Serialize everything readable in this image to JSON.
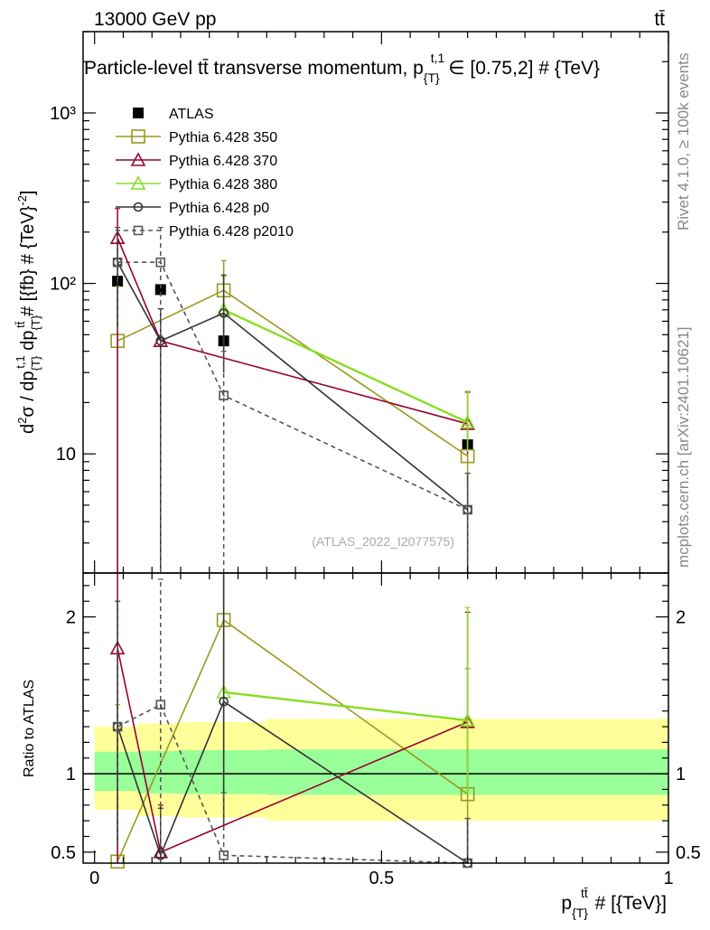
{
  "header": {
    "collision": "13000 GeV pp",
    "process": "tt̄"
  },
  "side_labels": {
    "rivet": "Rivet 4.1.0, ≥ 100k events",
    "source": "mcplots.cern.ch [arXiv:2401.10621]"
  },
  "chart_data": [
    {
      "type": "scatter",
      "panel": "main",
      "title": "Particle-level tt̄ transverse momentum, p_{T}^{t,1} ∈ [0.75,2] # {TeV}",
      "title_parts": {
        "main": "Particle-level tt̄ transverse momentum, p",
        "sub": "{T}",
        "sup": "t,1",
        "tail": "∈ [0.75,2] # {TeV}"
      },
      "ylabel": "d²σ / dp_{T}^{t,1} dp_{T}^{tt̄} # [{fb} # {TeV}^{-2}]",
      "ylabel_parts": {
        "a": "d",
        "a_sup": "2",
        "b": "σ / dp",
        "b_sub": "{T}",
        "b_sup": "t,1",
        "c": " dp",
        "c_sub": "{T}",
        "c_sup": "tt̄",
        "d": " # [{fb} # {TeV}",
        "d_sup": "-2",
        "e": "]"
      },
      "yscale": "log",
      "ylim": [
        2.0,
        3000
      ],
      "xlim": [
        -0.02,
        1.0
      ],
      "yticks": [
        {
          "value": 10,
          "label": "10"
        },
        {
          "value": 100,
          "label": "10²"
        },
        {
          "value": 1000,
          "label": "10³"
        }
      ],
      "watermark": "(ATLAS_2022_I2077575)",
      "legend_position": "top-left",
      "series": [
        {
          "name": "ATLAS",
          "color": "#000000",
          "marker": "filled-square",
          "line": "none",
          "x": [
            0.04,
            0.115,
            0.225,
            0.65
          ],
          "y": [
            103,
            92,
            46,
            11.3
          ],
          "err_lo": [
            0,
            0,
            0,
            0
          ],
          "err_hi": [
            0,
            0,
            0,
            0
          ]
        },
        {
          "name": "Pythia 6.428 350",
          "color": "#999920",
          "marker": "open-square",
          "line": "solid",
          "x": [
            0.04,
            0.225,
            0.65
          ],
          "y": [
            46,
            91,
            9.7
          ],
          "err_lo": [
            46,
            50,
            3
          ],
          "err_hi": [
            50,
            45,
            5
          ]
        },
        {
          "name": "Pythia 6.428 370",
          "color": "#990033",
          "marker": "open-triangle",
          "line": "solid",
          "x": [
            0.04,
            0.115,
            0.65
          ],
          "y": [
            185,
            46,
            15
          ],
          "err_lo": [
            185,
            46,
            5
          ],
          "err_hi": [
            90,
            25,
            8
          ]
        },
        {
          "name": "Pythia 6.428 380",
          "color": "#88dd22",
          "marker": "open-triangle",
          "line": "solid",
          "x": [
            0.225,
            0.65
          ],
          "y": [
            70,
            15.3
          ],
          "err_lo": [
            30,
            5
          ],
          "err_hi": [
            40,
            8
          ]
        },
        {
          "name": "Pythia 6.428 p0",
          "color": "#333333",
          "marker": "open-circle",
          "line": "solid",
          "x": [
            0.04,
            0.115,
            0.225,
            0.65
          ],
          "y": [
            133,
            46,
            67,
            4.7
          ],
          "err_lo": [
            78,
            46,
            37,
            4.7
          ],
          "err_hi": [
            80,
            25,
            45,
            3
          ]
        },
        {
          "name": "Pythia 6.428 p2010",
          "color": "#555555",
          "marker": "open-square-small",
          "line": "dashed",
          "x": [
            0.04,
            0.115,
            0.225,
            0.65
          ],
          "y": [
            133,
            133,
            22,
            4.7
          ],
          "err_lo": [
            80,
            133,
            22,
            4.7
          ],
          "err_hi": [
            80,
            80,
            18,
            3
          ]
        }
      ]
    },
    {
      "type": "scatter",
      "panel": "ratio",
      "ylabel": "Ratio to ATLAS",
      "xlabel": "p_{T}^{tt̄} # [{TeV}]",
      "xlabel_parts": {
        "a": "p",
        "sub": "{T}",
        "sup": "tt̄",
        "b": " # [{TeV}]"
      },
      "ylim": [
        0.43,
        2.28
      ],
      "xlim": [
        -0.02,
        1.0
      ],
      "yticks": [
        {
          "value": 0.5,
          "label": "0.5"
        },
        {
          "value": 1,
          "label": "1"
        },
        {
          "value": 2,
          "label": "2"
        }
      ],
      "xticks": [
        {
          "value": 0,
          "label": "0"
        },
        {
          "value": 0.5,
          "label": "0.5"
        },
        {
          "value": 1,
          "label": "1"
        }
      ],
      "bands": [
        {
          "name": "total-uncertainty",
          "color": "#ffff99",
          "segments": [
            {
              "x0": 0.0,
              "x1": 0.075,
              "lo": 0.77,
              "hi": 1.3
            },
            {
              "x0": 0.075,
              "x1": 0.15,
              "lo": 0.73,
              "hi": 1.32
            },
            {
              "x0": 0.15,
              "x1": 0.3,
              "lo": 0.72,
              "hi": 1.33
            },
            {
              "x0": 0.3,
              "x1": 1.0,
              "lo": 0.7,
              "hi": 1.35
            }
          ]
        },
        {
          "name": "stat-uncertainty",
          "color": "#99ff99",
          "segments": [
            {
              "x0": 0.0,
              "x1": 0.075,
              "lo": 0.89,
              "hi": 1.14
            },
            {
              "x0": 0.075,
              "x1": 0.15,
              "lo": 0.875,
              "hi": 1.145
            },
            {
              "x0": 0.15,
              "x1": 0.3,
              "lo": 0.87,
              "hi": 1.15
            },
            {
              "x0": 0.3,
              "x1": 1.0,
              "lo": 0.865,
              "hi": 1.155
            }
          ]
        }
      ],
      "series": [
        {
          "name": "Pythia 6.428 350",
          "color": "#999920",
          "marker": "open-square",
          "line": "solid",
          "x": [
            0.04,
            0.225,
            0.65
          ],
          "y": [
            0.44,
            1.98,
            0.87
          ],
          "err_lo": [
            0.44,
            1.0,
            0.45
          ],
          "err_hi": [
            1.0,
            0.5,
            0.8
          ]
        },
        {
          "name": "Pythia 6.428 370",
          "color": "#990033",
          "marker": "open-triangle",
          "line": "solid",
          "x": [
            0.04,
            0.115,
            0.65
          ],
          "y": [
            1.8,
            0.5,
            1.33
          ],
          "err_lo": [
            1.8,
            0.5,
            0.45
          ],
          "err_hi": [
            0.9,
            0.3,
            0.7
          ]
        },
        {
          "name": "Pythia 6.428 380",
          "color": "#88dd22",
          "marker": "open-triangle",
          "line": "solid",
          "x": [
            0.225,
            0.65
          ],
          "y": [
            1.52,
            1.34
          ],
          "err_lo": [
            0.84,
            0.47
          ],
          "err_hi": [
            0.8,
            0.72
          ]
        },
        {
          "name": "Pythia 6.428 p0",
          "color": "#333333",
          "marker": "open-circle",
          "line": "solid",
          "x": [
            0.04,
            0.115,
            0.225,
            0.65
          ],
          "y": [
            1.3,
            0.48,
            1.46,
            0.415
          ],
          "err_lo": [
            0.75,
            0.48,
            0.8,
            0.415
          ],
          "err_hi": [
            0.8,
            0.3,
            0.9,
            0.3
          ]
        },
        {
          "name": "Pythia 6.428 p2010",
          "color": "#555555",
          "marker": "open-square-small",
          "line": "dashed",
          "x": [
            0.04,
            0.115,
            0.225,
            0.65
          ],
          "y": [
            1.3,
            1.44,
            0.48,
            0.415
          ],
          "err_lo": [
            0.75,
            1.44,
            0.48,
            0.415
          ],
          "err_hi": [
            0.8,
            0.8,
            0.4,
            0.3
          ]
        }
      ]
    }
  ]
}
